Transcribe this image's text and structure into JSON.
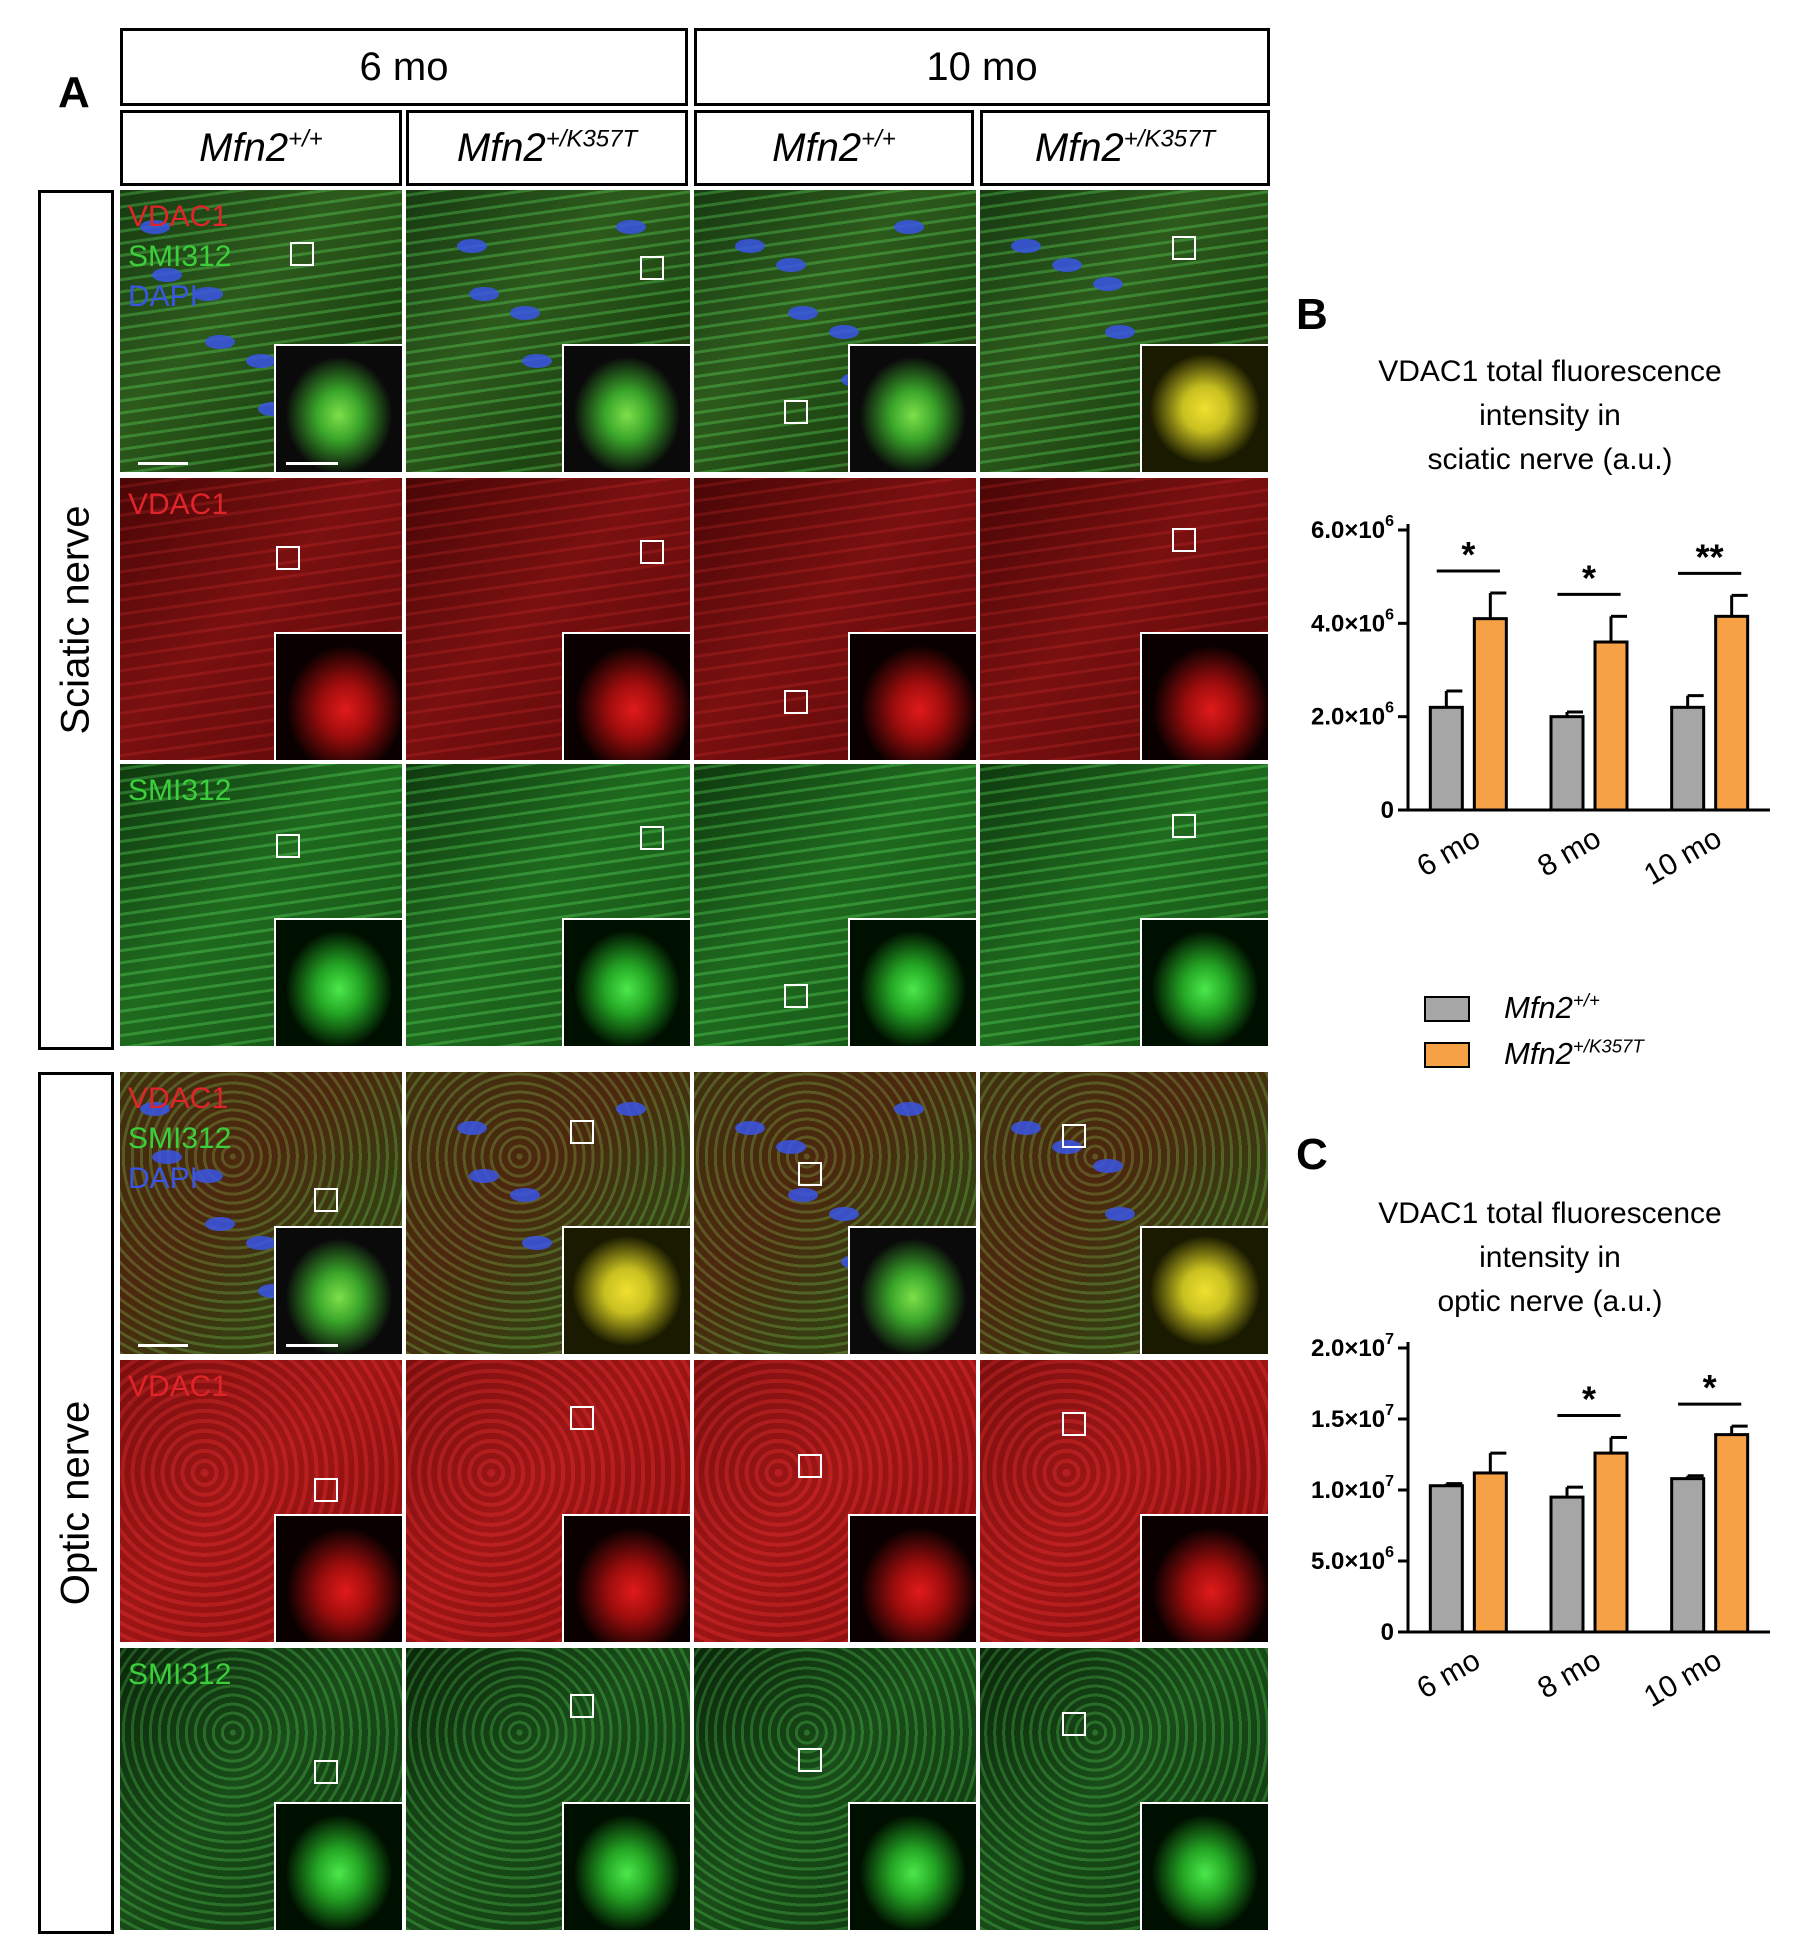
{
  "panel_a": {
    "letter": "A",
    "time_headers": [
      "6 mo",
      "10 mo"
    ],
    "genotype_headers": [
      {
        "base": "Mfn2",
        "sup": "+/+"
      },
      {
        "base": "Mfn2",
        "sup": "+/K357T"
      },
      {
        "base": "Mfn2",
        "sup": "+/+"
      },
      {
        "base": "Mfn2",
        "sup": "+/K357T"
      }
    ],
    "row_groups": [
      "Sciatic nerve",
      "Optic nerve"
    ],
    "stain_labels": {
      "vdac1": "VDAC1",
      "smi312": "SMI312",
      "dapi": "DAPI"
    },
    "colors": {
      "vdac1": "#e0242a",
      "smi312": "#3ccf3c",
      "dapi": "#3a55e6"
    }
  },
  "panel_b": {
    "letter": "B"
  },
  "panel_c": {
    "letter": "C"
  },
  "legend": [
    {
      "base": "Mfn2",
      "sup": "+/+",
      "color": "#a6a6a6"
    },
    {
      "base": "Mfn2",
      "sup": "+/K357T",
      "color": "#f7a146"
    }
  ],
  "chart_data": [
    {
      "type": "bar",
      "title_lines": [
        "VDAC1 total fluorescence",
        "intensity in",
        "sciatic nerve (a.u.)"
      ],
      "categories": [
        "6 mo",
        "8 mo",
        "10 mo"
      ],
      "series": [
        {
          "values": [
            2200000,
            2000000,
            2200000
          ],
          "errors": [
            350000,
            100000,
            250000
          ],
          "color": "#a6a6a6"
        },
        {
          "values": [
            4100000,
            3600000,
            4150000
          ],
          "errors": [
            550000,
            550000,
            450000
          ],
          "color": "#f7a146"
        }
      ],
      "ylim": [
        0,
        6000000
      ],
      "yticks": [
        {
          "value": 0,
          "mant": "0",
          "exp": ""
        },
        {
          "value": 2000000,
          "mant": "2.0×10",
          "exp": "6"
        },
        {
          "value": 4000000,
          "mant": "4.0×10",
          "exp": "6"
        },
        {
          "value": 6000000,
          "mant": "6.0×10",
          "exp": "6"
        }
      ],
      "significance": [
        "*",
        "*",
        "**"
      ]
    },
    {
      "type": "bar",
      "title_lines": [
        "VDAC1 total fluorescence",
        "intensity in",
        "optic nerve (a.u.)"
      ],
      "categories": [
        "6 mo",
        "8 mo",
        "10 mo"
      ],
      "series": [
        {
          "values": [
            10300000,
            9500000,
            10800000
          ],
          "errors": [
            150000,
            700000,
            200000
          ],
          "color": "#a6a6a6"
        },
        {
          "values": [
            11200000,
            12600000,
            13900000
          ],
          "errors": [
            1400000,
            1100000,
            600000
          ],
          "color": "#f7a146"
        }
      ],
      "ylim": [
        0,
        20000000
      ],
      "yticks": [
        {
          "value": 0,
          "mant": "0",
          "exp": ""
        },
        {
          "value": 5000000,
          "mant": "5.0×10",
          "exp": "6"
        },
        {
          "value": 10000000,
          "mant": "1.0×10",
          "exp": "7"
        },
        {
          "value": 15000000,
          "mant": "1.5×10",
          "exp": "7"
        },
        {
          "value": 20000000,
          "mant": "2.0×10",
          "exp": "7"
        }
      ],
      "significance": [
        "",
        "*",
        "*"
      ]
    }
  ]
}
